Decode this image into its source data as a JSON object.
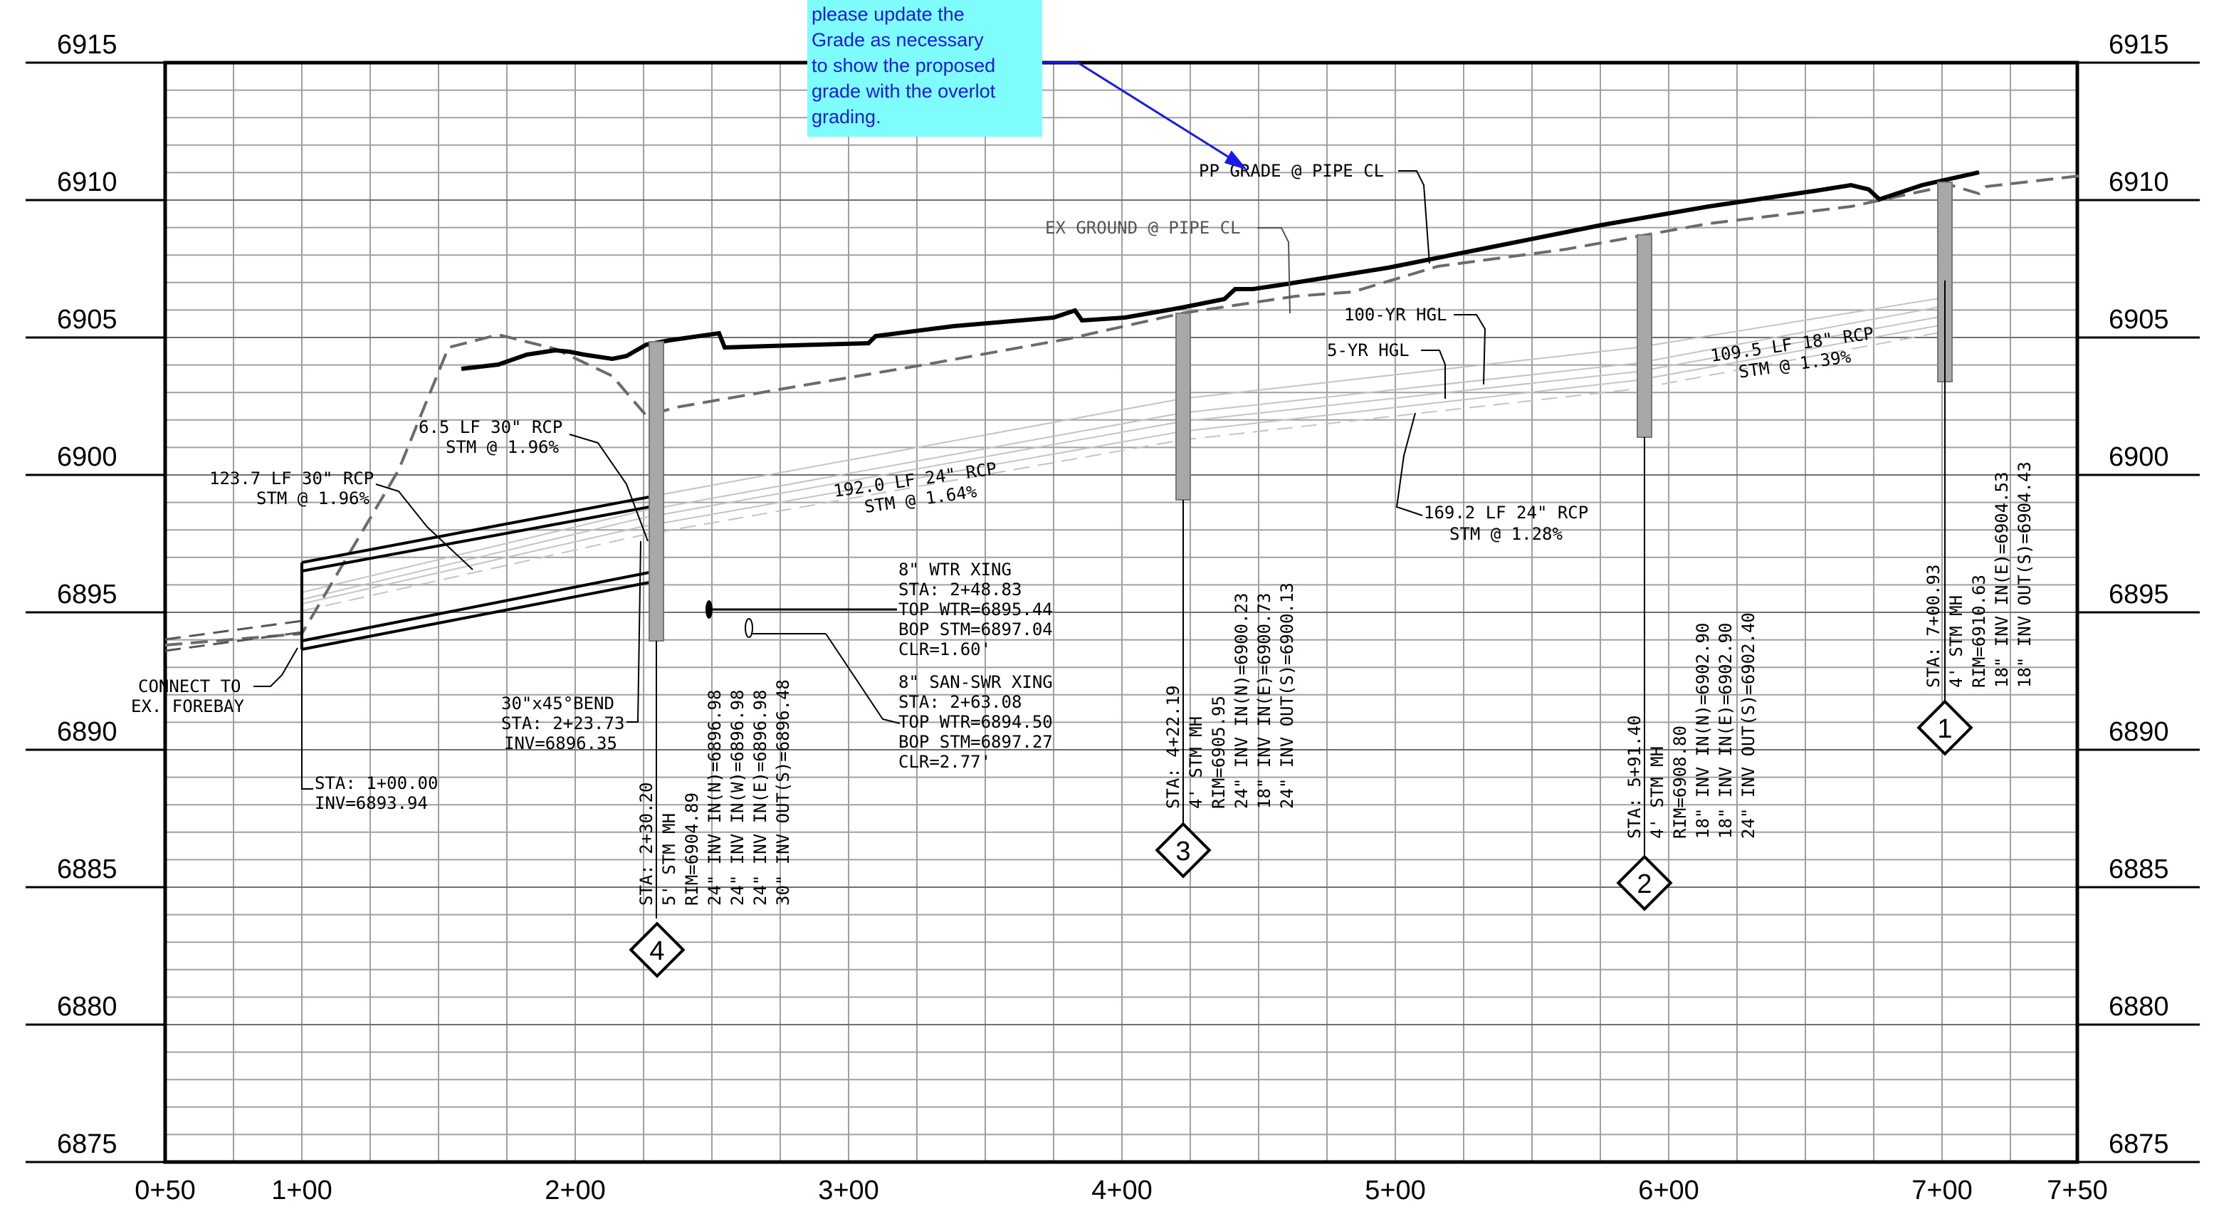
{
  "y_axis": {
    "labels": [
      "6915",
      "6910",
      "6905",
      "6900",
      "6895",
      "6890",
      "6885",
      "6880",
      "6875"
    ]
  },
  "x_axis": {
    "labels": [
      "0+50",
      "1+00",
      "2+00",
      "3+00",
      "4+00",
      "5+00",
      "6+00",
      "7+00",
      "7+50"
    ]
  },
  "comment": {
    "lines": [
      "please update the",
      "Grade as necessary",
      "to show the proposed",
      "grade with the overlot",
      "grading."
    ]
  },
  "profile_labels": {
    "pp_grade": "PP GRADE @ PIPE CL",
    "ex_ground": "EX GROUND @ PIPE CL",
    "hgl_100": "100-YR HGL",
    "hgl_5": "5-YR HGL"
  },
  "pipe_labels": {
    "p1": [
      "123.7 LF 30\" RCP",
      "STM @ 1.96%"
    ],
    "p2": [
      "6.5 LF 30\" RCP",
      "STM @ 1.96%"
    ],
    "p3": [
      "192.0 LF 24\" RCP",
      "STM @ 1.64%"
    ],
    "p4": [
      "169.2 LF 24\" RCP",
      "STM @ 1.28%"
    ],
    "p5": [
      "109.5 LF 18\" RCP",
      "STM @ 1.39%"
    ]
  },
  "connect": [
    "CONNECT TO",
    "EX. FOREBAY"
  ],
  "start_point": [
    "STA: 1+00.00",
    "INV=6893.94"
  ],
  "bend": [
    "30\"x45°BEND",
    "STA: 2+23.73",
    "INV=6896.35"
  ],
  "crossings": {
    "wtr": [
      "8\" WTR XING",
      "STA: 2+48.83",
      "TOP WTR=6895.44",
      "BOP STM=6897.04",
      "CLR=1.60'"
    ],
    "ssw": [
      "8\" SAN-SWR XING",
      "STA: 2+63.08",
      "TOP WTR=6894.50",
      "BOP STM=6897.27",
      "CLR=2.77'"
    ]
  },
  "manholes": [
    {
      "id": "4",
      "lines": [
        "STA: 2+30.20",
        "5' STM MH",
        "RIM=6904.89",
        "24\" INV IN(N)=6896.98",
        "24\" INV IN(W)=6896.98",
        "24\" INV IN(E)=6896.98",
        "30\" INV OUT(S)=6896.48"
      ]
    },
    {
      "id": "3",
      "lines": [
        "STA: 4+22.19",
        "4' STM MH",
        "RIM=6905.95",
        "24\" INV IN(N)=6900.23",
        "18\" INV IN(E)=6900.73",
        "24\" INV OUT(S)=6900.13"
      ]
    },
    {
      "id": "2",
      "lines": [
        "STA: 5+91.40",
        "4' STM MH",
        "RIM=6908.80",
        "18\" INV IN(N)=6902.90",
        "18\" INV IN(E)=6902.90",
        "24\" INV OUT(S)=6902.40"
      ]
    },
    {
      "id": "1",
      "lines": [
        "STA: 7+00.93",
        "4' STM MH",
        "RIM=6910.63",
        "18\" INV IN(E)=6904.53",
        "18\" INV OUT(S)=6904.43"
      ]
    }
  ],
  "colors": {
    "comment_bg": "#7ffcfc",
    "comment_text": "#1a1ae6",
    "grid": "#a0a0a0",
    "ex_ground": "#6b6b6b",
    "structure_fill": "#a8a8a8"
  }
}
